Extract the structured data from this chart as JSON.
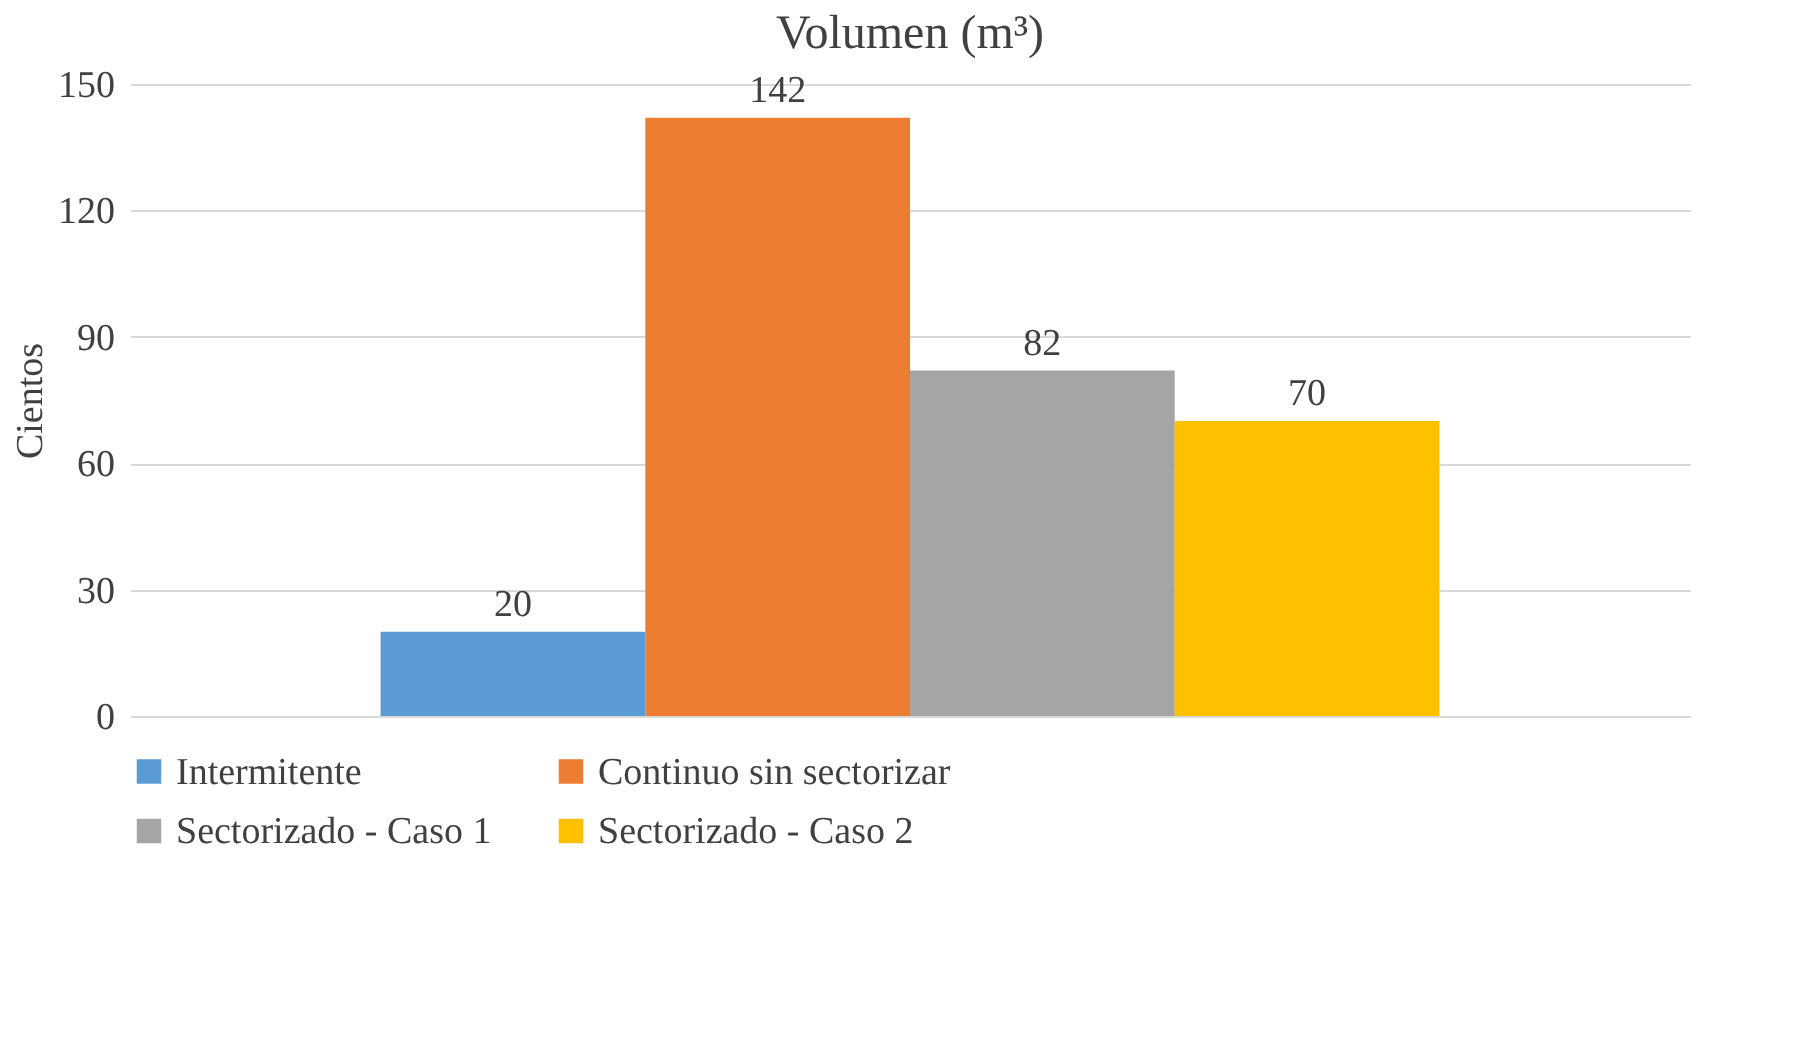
{
  "chart_data": {
    "type": "bar",
    "title": "Volumen (m³)",
    "ylabel": "Cientos",
    "categories": [
      null
    ],
    "series": [
      {
        "name": "Intermitente",
        "color": "#5b9bd5",
        "values": [
          20
        ]
      },
      {
        "name": "Continuo sin sectorizar",
        "color": "#ed7d31",
        "values": [
          142
        ]
      },
      {
        "name": "Sectorizado - Caso 1",
        "color": "#a5a5a5",
        "values": [
          82
        ]
      },
      {
        "name": "Sectorizado - Caso 2",
        "color": "#ffc000",
        "values": [
          70
        ]
      }
    ],
    "ylim": [
      0,
      150
    ],
    "yticks": [
      0,
      30,
      60,
      90,
      120,
      150
    ],
    "grid": "y",
    "legend": "bottom",
    "data_labels": true,
    "tick_labels": "y"
  }
}
